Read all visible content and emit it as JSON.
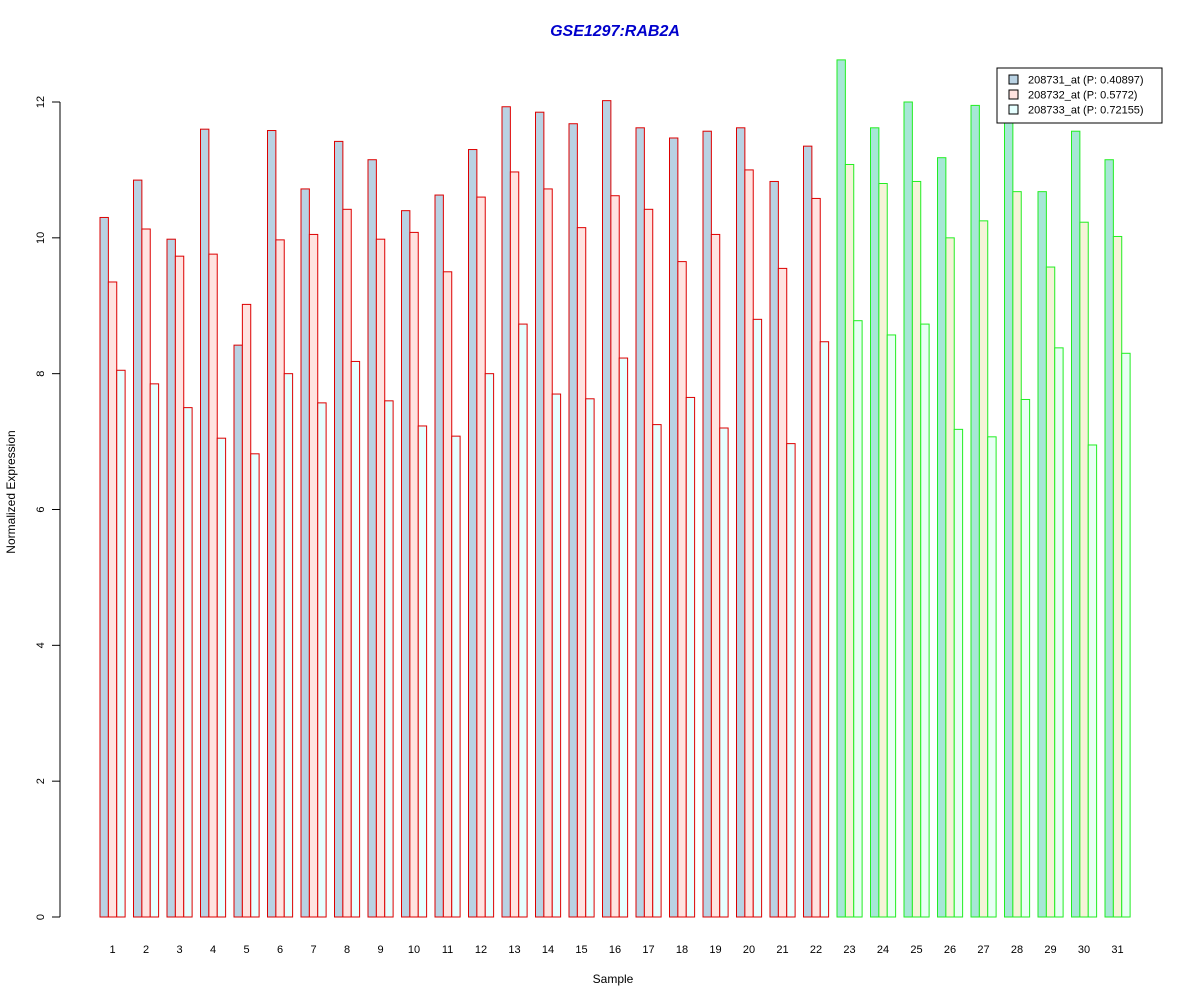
{
  "chart_data": {
    "type": "bar",
    "title": "GSE1297:RAB2A",
    "xlabel": "Sample",
    "ylabel": "Normalized Expression",
    "ylim": [
      0,
      12.6
    ],
    "yticks": [
      0,
      2,
      4,
      6,
      8,
      10,
      12
    ],
    "grid": false,
    "legend_position": "top-right",
    "categories": [
      "1",
      "2",
      "3",
      "4",
      "5",
      "6",
      "7",
      "8",
      "9",
      "10",
      "11",
      "12",
      "13",
      "14",
      "15",
      "16",
      "17",
      "18",
      "19",
      "20",
      "21",
      "22",
      "23",
      "24",
      "25",
      "26",
      "27",
      "28",
      "29",
      "30",
      "31"
    ],
    "group_split_after": 22,
    "series": [
      {
        "name": "208731_at (P: 0.40897)",
        "values": [
          10.3,
          10.85,
          9.98,
          11.6,
          8.42,
          11.58,
          10.72,
          11.42,
          11.15,
          10.4,
          10.63,
          11.3,
          11.93,
          11.85,
          11.68,
          12.02,
          11.62,
          11.47,
          11.57,
          11.62,
          10.83,
          11.35,
          12.62,
          11.62,
          12.0,
          11.18,
          11.95,
          11.7,
          10.68,
          11.57,
          11.15
        ]
      },
      {
        "name": "208732_at (P: 0.5772)",
        "values": [
          9.35,
          10.13,
          9.73,
          9.76,
          9.02,
          9.97,
          10.05,
          10.42,
          9.98,
          10.08,
          9.5,
          10.6,
          10.97,
          10.72,
          10.15,
          10.62,
          10.42,
          9.65,
          10.05,
          11.0,
          9.55,
          10.58,
          11.08,
          10.8,
          10.83,
          10.0,
          10.25,
          10.68,
          9.57,
          10.23,
          10.02
        ]
      },
      {
        "name": "208733_at (P: 0.72155)",
        "values": [
          8.05,
          7.85,
          7.5,
          7.05,
          6.82,
          8.0,
          7.57,
          8.18,
          7.6,
          7.23,
          7.08,
          8.0,
          8.73,
          7.7,
          7.63,
          8.23,
          7.25,
          7.65,
          7.2,
          8.8,
          6.97,
          8.47,
          8.78,
          8.57,
          8.73,
          7.18,
          7.07,
          7.62,
          8.38,
          6.95,
          8.3
        ]
      }
    ],
    "colors": {
      "fills": [
        "#b9d2e3",
        "#ffe3e0",
        "#e6ffff"
      ],
      "fills_group2": [
        "#a6e7d6",
        "#f5f3d8",
        "#e8fff4"
      ],
      "border_group1": "#dd0000",
      "border_group2": "#22ee22",
      "title": "#0000cc"
    }
  }
}
